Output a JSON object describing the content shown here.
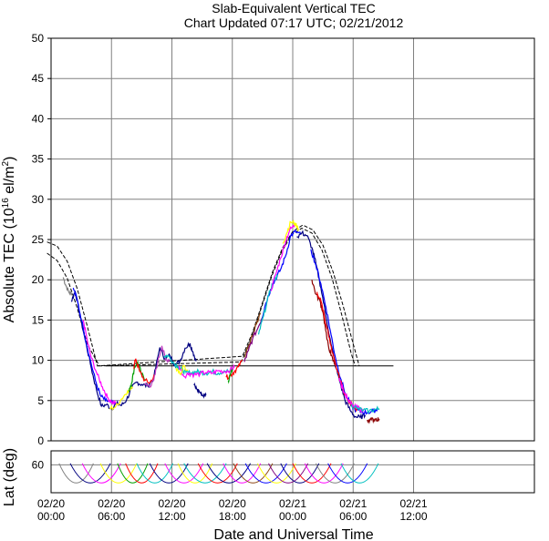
{
  "chart_data": {
    "type": "line",
    "title": "Slab-Equivalent Vertical TEC",
    "subtitle": "Chart Updated 07:17 UTC; 02/21/2012",
    "xlabel": "Date and Universal Time",
    "ylabel_main": "Absolute TEC (10",
    "ylabel_exp": "16",
    "ylabel_unit": " el/m",
    "ylabel_unit_exp": "2",
    "ylabel_close": ")",
    "ylabel_lat": "Lat (deg)",
    "xlim_hours": [
      0,
      48
    ],
    "ylim": [
      0,
      50
    ],
    "lat_ylim": [
      80,
      50
    ],
    "grid": true,
    "x_ticks": [
      {
        "hour": 0,
        "date": "02/20",
        "time": "00:00"
      },
      {
        "hour": 6,
        "date": "02/20",
        "time": "06:00"
      },
      {
        "hour": 12,
        "date": "02/20",
        "time": "12:00"
      },
      {
        "hour": 18,
        "date": "02/20",
        "time": "18:00"
      },
      {
        "hour": 24,
        "date": "02/21",
        "time": "00:00"
      },
      {
        "hour": 30,
        "date": "02/21",
        "time": "06:00"
      },
      {
        "hour": 36,
        "date": "02/21",
        "time": "12:00"
      }
    ],
    "y_ticks": [
      "0",
      "5",
      "10",
      "15",
      "20",
      "25",
      "30",
      "35",
      "40",
      "45",
      "50"
    ],
    "lat_ticks": [
      "60"
    ],
    "reference_level": 9.3,
    "reference_range_hours": [
      5.4,
      34
    ],
    "envelope_upper": [
      [
        -0.4,
        24.7
      ],
      [
        0.6,
        24.2
      ],
      [
        1.6,
        22.3
      ],
      [
        2.6,
        18.9
      ],
      [
        3.6,
        14.2
      ],
      [
        4.6,
        9.3
      ],
      [
        19,
        10.5
      ],
      [
        20,
        13.4
      ],
      [
        21,
        17.2
      ],
      [
        22,
        21.0
      ],
      [
        23,
        24.0
      ],
      [
        24,
        26.0
      ],
      [
        25,
        26.8
      ],
      [
        26,
        26.2
      ],
      [
        27,
        24.3
      ],
      [
        28,
        21.0
      ],
      [
        29,
        16.8
      ],
      [
        29.8,
        13.0
      ],
      [
        30.6,
        9.3
      ]
    ],
    "envelope_lower": [
      [
        -0.4,
        23.3
      ],
      [
        0.6,
        22.4
      ],
      [
        1.6,
        20.2
      ],
      [
        2.6,
        16.5
      ],
      [
        3.6,
        12.0
      ],
      [
        4.8,
        9.3
      ],
      [
        18.9,
        9.8
      ],
      [
        19.9,
        12.8
      ],
      [
        20.9,
        16.6
      ],
      [
        21.9,
        20.4
      ],
      [
        22.9,
        23.5
      ],
      [
        23.9,
        25.6
      ],
      [
        24.9,
        26.4
      ],
      [
        25.9,
        25.8
      ],
      [
        26.9,
        23.7
      ],
      [
        27.9,
        20.2
      ],
      [
        28.9,
        15.5
      ],
      [
        29.8,
        10.9
      ],
      [
        30.2,
        9.3
      ]
    ],
    "series": [
      {
        "color": "#808080",
        "values": [
          [
            1.2,
            20.3
          ],
          [
            1.5,
            19.2
          ],
          [
            1.8,
            18.4
          ],
          [
            2.1,
            18.3
          ]
        ]
      },
      {
        "color": "#000080",
        "values": [
          [
            2.0,
            17.3
          ],
          [
            2.4,
            18.6
          ],
          [
            2.8,
            16.0
          ],
          [
            3.4,
            12.5
          ],
          [
            4.0,
            9.0
          ],
          [
            4.5,
            6.4
          ],
          [
            5.0,
            4.3
          ],
          [
            5.5,
            4.5
          ],
          [
            6.0,
            4.0
          ],
          [
            6.5,
            4.6
          ],
          [
            7.0,
            4.4
          ],
          [
            7.5,
            5.1
          ],
          [
            8.0,
            6.5
          ],
          [
            8.5,
            7.3
          ],
          [
            9.0,
            7.0
          ],
          [
            9.6,
            6.8
          ],
          [
            10.2,
            7.8
          ],
          [
            10.8,
            11.6
          ],
          [
            11.3,
            10.2
          ],
          [
            11.8,
            10.6
          ],
          [
            12.3,
            9.4
          ],
          [
            12.8,
            9.9
          ],
          [
            13.3,
            11.5
          ],
          [
            13.8,
            12.1
          ],
          [
            14.1,
            11.0
          ],
          [
            14.4,
            9.9
          ]
        ]
      },
      {
        "color": "#0000ff",
        "values": [
          [
            2.2,
            19.0
          ],
          [
            2.6,
            17.5
          ],
          [
            3.2,
            14.0
          ],
          [
            3.8,
            10.5
          ],
          [
            4.4,
            7.5
          ],
          [
            4.9,
            5.6
          ],
          [
            5.4,
            5.0
          ],
          [
            5.9,
            4.8
          ],
          [
            6.4,
            4.5
          ]
        ]
      },
      {
        "color": "#ff00ff",
        "values": [
          [
            3.2,
            15.0
          ],
          [
            3.6,
            12.4
          ],
          [
            4.0,
            10.3
          ],
          [
            4.6,
            8.2
          ],
          [
            5.1,
            6.7
          ],
          [
            5.6,
            5.4
          ],
          [
            6.0,
            4.8
          ],
          [
            6.5,
            4.6
          ]
        ]
      },
      {
        "color": "#ffff00",
        "values": [
          [
            5.8,
            4.0
          ],
          [
            6.4,
            4.2
          ],
          [
            7.0,
            5.2
          ],
          [
            7.6,
            6.2
          ],
          [
            8.1,
            6.5
          ]
        ]
      },
      {
        "color": "#00a000",
        "values": [
          [
            7.7,
            6.3
          ],
          [
            8.0,
            7.2
          ],
          [
            8.3,
            9.2
          ],
          [
            8.6,
            9.8
          ],
          [
            9.0,
            8.2
          ],
          [
            9.4,
            7.6
          ]
        ]
      },
      {
        "color": "#ff0000",
        "values": [
          [
            8.2,
            9.0
          ],
          [
            8.4,
            10.2
          ],
          [
            8.8,
            8.6
          ],
          [
            9.3,
            7.5
          ],
          [
            9.8,
            7.2
          ],
          [
            10.3,
            8.1
          ]
        ]
      },
      {
        "color": "#c040c0",
        "values": [
          [
            9.3,
            7.0
          ],
          [
            9.8,
            6.8
          ],
          [
            10.2,
            7.5
          ],
          [
            10.6,
            9.8
          ],
          [
            11.0,
            11.8
          ],
          [
            11.4,
            10.0
          ],
          [
            11.9,
            10.2
          ]
        ]
      },
      {
        "color": "#00c0c0",
        "values": [
          [
            11.2,
            10.5
          ],
          [
            11.6,
            10.6
          ],
          [
            12.1,
            9.8
          ],
          [
            12.6,
            9.2
          ],
          [
            13.0,
            8.8
          ],
          [
            13.4,
            8.5
          ],
          [
            13.9,
            8.4
          ],
          [
            14.4,
            8.6
          ],
          [
            14.9,
            8.5
          ],
          [
            15.4,
            8.4
          ],
          [
            16.0,
            8.6
          ],
          [
            16.6,
            8.4
          ],
          [
            17.2,
            8.7
          ],
          [
            17.8,
            8.6
          ]
        ]
      },
      {
        "color": "#000080",
        "values": [
          [
            14.2,
            6.9
          ],
          [
            14.5,
            6.4
          ],
          [
            14.8,
            6.0
          ],
          [
            15.1,
            5.6
          ],
          [
            15.4,
            5.7
          ]
        ]
      },
      {
        "color": "#ff00ff",
        "values": [
          [
            12.7,
            9.3
          ],
          [
            13.2,
            8.0
          ],
          [
            13.7,
            8.4
          ],
          [
            14.2,
            8.2
          ],
          [
            14.8,
            8.3
          ],
          [
            15.4,
            8.5
          ],
          [
            16.0,
            8.4
          ],
          [
            16.6,
            8.7
          ],
          [
            17.2,
            8.6
          ],
          [
            17.8,
            8.8
          ],
          [
            18.2,
            9.1
          ]
        ]
      },
      {
        "color": "#ffff00",
        "values": [
          [
            12.4,
            9.0
          ],
          [
            12.8,
            8.3
          ],
          [
            13.2,
            9.3
          ],
          [
            13.6,
            8.8
          ]
        ]
      },
      {
        "color": "#ff0000",
        "values": [
          [
            17.4,
            7.9
          ],
          [
            17.8,
            8.1
          ],
          [
            18.2,
            8.6
          ],
          [
            18.6,
            9.2
          ],
          [
            19.0,
            10.0
          ]
        ]
      },
      {
        "color": "#00a000",
        "values": [
          [
            17.6,
            7.5
          ],
          [
            17.8,
            8.2
          ],
          [
            18.0,
            8.8
          ]
        ]
      },
      {
        "color": "#8b4513",
        "values": [
          [
            19.2,
            10.4
          ],
          [
            19.6,
            11.8
          ],
          [
            20.0,
            13.0
          ],
          [
            20.4,
            14.5
          ],
          [
            20.8,
            15.9
          ]
        ]
      },
      {
        "color": "#800080",
        "values": [
          [
            19.2,
            9.8
          ],
          [
            19.6,
            11.2
          ],
          [
            20.0,
            12.6
          ],
          [
            20.6,
            14.2
          ],
          [
            21.2,
            16.2
          ]
        ]
      },
      {
        "color": "#0000ff",
        "values": [
          [
            20.8,
            14.5
          ],
          [
            21.3,
            17.0
          ],
          [
            21.8,
            18.8
          ],
          [
            22.3,
            20.1
          ],
          [
            22.8,
            21.3
          ],
          [
            23.3,
            23.0
          ],
          [
            23.8,
            25.5
          ],
          [
            24.3,
            26.0
          ],
          [
            24.8,
            25.6
          ]
        ]
      },
      {
        "color": "#00c0c0",
        "values": [
          [
            20.6,
            13.2
          ],
          [
            21.1,
            15.5
          ],
          [
            21.6,
            18.0
          ],
          [
            22.1,
            20.0
          ],
          [
            22.5,
            20.5
          ]
        ]
      },
      {
        "color": "#ff00ff",
        "values": [
          [
            21.8,
            18.6
          ],
          [
            22.3,
            20.6
          ],
          [
            22.8,
            22.7
          ],
          [
            23.3,
            24.8
          ],
          [
            23.7,
            26.2
          ],
          [
            24.2,
            26.8
          ]
        ]
      },
      {
        "color": "#ffff00",
        "values": [
          [
            23.0,
            24.5
          ],
          [
            23.4,
            25.8
          ],
          [
            23.8,
            27.2
          ],
          [
            24.2,
            27.0
          ],
          [
            24.6,
            26.3
          ]
        ]
      },
      {
        "color": "#000080",
        "values": [
          [
            24.4,
            25.3
          ],
          [
            24.9,
            25.8
          ],
          [
            25.4,
            25.5
          ],
          [
            25.9,
            24.0
          ],
          [
            26.3,
            22.0
          ],
          [
            26.8,
            19.0
          ],
          [
            27.3,
            15.5
          ],
          [
            27.8,
            12.0
          ],
          [
            28.3,
            9.0
          ],
          [
            28.8,
            6.8
          ],
          [
            29.2,
            5.0
          ],
          [
            29.7,
            3.8
          ],
          [
            30.2,
            3.0
          ],
          [
            30.7,
            2.9
          ],
          [
            31.2,
            3.2
          ]
        ]
      },
      {
        "color": "#0000ff",
        "values": [
          [
            25.8,
            23.8
          ],
          [
            26.3,
            21.8
          ],
          [
            26.8,
            19.5
          ],
          [
            27.3,
            16.6
          ],
          [
            27.8,
            13.2
          ],
          [
            28.3,
            10.0
          ],
          [
            28.8,
            7.6
          ],
          [
            29.3,
            5.6
          ],
          [
            29.8,
            4.4
          ],
          [
            30.3,
            3.8
          ],
          [
            30.8,
            3.6
          ],
          [
            31.4,
            3.5
          ],
          [
            32.0,
            3.7
          ],
          [
            32.4,
            3.9
          ]
        ]
      },
      {
        "color": "#8b0000",
        "values": [
          [
            25.9,
            20.0
          ],
          [
            26.3,
            18.2
          ],
          [
            26.7,
            17.4
          ],
          [
            27.0,
            16.0
          ],
          [
            27.4,
            12.6
          ],
          [
            27.8,
            10.6
          ],
          [
            28.2,
            9.4
          ]
        ]
      },
      {
        "color": "#ff0000",
        "values": [
          [
            26.4,
            18.5
          ],
          [
            26.9,
            17.0
          ],
          [
            27.4,
            14.0
          ],
          [
            27.9,
            11.0
          ],
          [
            28.4,
            8.8
          ],
          [
            28.9,
            6.8
          ],
          [
            29.4,
            5.2
          ],
          [
            29.9,
            4.4
          ],
          [
            30.4,
            4.0
          ]
        ]
      },
      {
        "color": "#ff00ff",
        "values": [
          [
            28.6,
            7.8
          ],
          [
            29.1,
            6.0
          ],
          [
            29.6,
            4.8
          ],
          [
            30.1,
            4.2
          ],
          [
            30.6,
            4.1
          ],
          [
            31.0,
            3.6
          ]
        ]
      },
      {
        "color": "#00c0c0",
        "values": [
          [
            29.8,
            4.5
          ],
          [
            30.4,
            4.0
          ],
          [
            31.0,
            3.8
          ],
          [
            31.6,
            3.7
          ],
          [
            32.2,
            3.9
          ],
          [
            32.6,
            4.0
          ]
        ]
      },
      {
        "color": "#8b0000",
        "values": [
          [
            31.4,
            2.6
          ],
          [
            31.8,
            2.6
          ],
          [
            32.2,
            2.7
          ],
          [
            32.6,
            2.7
          ]
        ]
      }
    ],
    "lat_tracks": [
      {
        "color": "#808080",
        "start": 0.8,
        "end": 4.2
      },
      {
        "color": "#000080",
        "start": 1.9,
        "end": 5.9
      },
      {
        "color": "#ff00ff",
        "start": 3.1,
        "end": 6.9
      },
      {
        "color": "#ffff00",
        "start": 4.9,
        "end": 8.5
      },
      {
        "color": "#00a000",
        "start": 6.6,
        "end": 9.6
      },
      {
        "color": "#ff0000",
        "start": 7.4,
        "end": 10.6
      },
      {
        "color": "#00c0c0",
        "start": 8.5,
        "end": 12.1
      },
      {
        "color": "#000080",
        "start": 9.8,
        "end": 13.6
      },
      {
        "color": "#ff00ff",
        "start": 11.3,
        "end": 15.1
      },
      {
        "color": "#ffff00",
        "start": 12.6,
        "end": 16.0
      },
      {
        "color": "#00c0c0",
        "start": 13.2,
        "end": 17.4
      },
      {
        "color": "#ff0000",
        "start": 14.6,
        "end": 18.5
      },
      {
        "color": "#000080",
        "start": 15.5,
        "end": 19.8
      },
      {
        "color": "#ff00ff",
        "start": 17.1,
        "end": 20.8
      },
      {
        "color": "#8b4513",
        "start": 18.1,
        "end": 22.0
      },
      {
        "color": "#0000ff",
        "start": 19.3,
        "end": 23.4
      },
      {
        "color": "#ffff00",
        "start": 20.5,
        "end": 24.3
      },
      {
        "color": "#800080",
        "start": 21.6,
        "end": 25.5
      },
      {
        "color": "#000080",
        "start": 22.8,
        "end": 26.6
      },
      {
        "color": "#ff0000",
        "start": 24.0,
        "end": 27.8
      },
      {
        "color": "#ff00ff",
        "start": 25.2,
        "end": 29.0
      },
      {
        "color": "#808080",
        "start": 26.3,
        "end": 30.1
      },
      {
        "color": "#0000ff",
        "start": 27.5,
        "end": 31.4
      },
      {
        "color": "#00c0c0",
        "start": 28.8,
        "end": 32.5
      }
    ]
  }
}
